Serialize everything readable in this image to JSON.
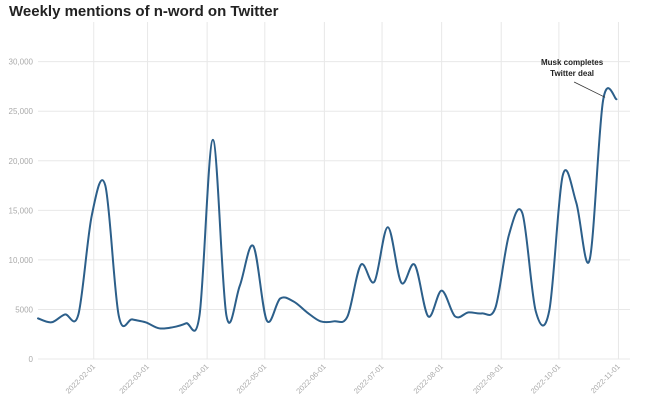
{
  "chart_data": {
    "type": "line",
    "title": "Weekly mentions of n-word on Twitter",
    "xlabel": "",
    "ylabel": "",
    "ylim": [
      0,
      34000
    ],
    "y_ticks": [
      0,
      5000,
      10000,
      15000,
      20000,
      25000,
      30000
    ],
    "y_tick_labels": [
      "0",
      "5000",
      "10,000",
      "15,000",
      "20,000",
      "25,000",
      "30,000"
    ],
    "x_ticks": [
      "2022-02-01",
      "2022-03-01",
      "2022-04-01",
      "2022-05-01",
      "2022-06-01",
      "2022-07-01",
      "2022-08-01",
      "2022-09-01",
      "2022-10-01",
      "2022-11-01"
    ],
    "xlim": [
      "2022-01-03",
      "2022-11-07"
    ],
    "grid": true,
    "series": [
      {
        "color": "#2c5f8a",
        "points": [
          [
            "2022-01-03",
            4100
          ],
          [
            "2022-01-10",
            3700
          ],
          [
            "2022-01-17",
            4500
          ],
          [
            "2022-01-24",
            4500
          ],
          [
            "2022-01-31",
            14500
          ],
          [
            "2022-02-07",
            17500
          ],
          [
            "2022-02-14",
            4400
          ],
          [
            "2022-02-21",
            4000
          ],
          [
            "2022-02-28",
            3700
          ],
          [
            "2022-03-07",
            3100
          ],
          [
            "2022-03-14",
            3200
          ],
          [
            "2022-03-21",
            3600
          ],
          [
            "2022-03-28",
            4400
          ],
          [
            "2022-04-04",
            22100
          ],
          [
            "2022-04-11",
            4400
          ],
          [
            "2022-04-18",
            7400
          ],
          [
            "2022-04-25",
            11400
          ],
          [
            "2022-05-02",
            3900
          ],
          [
            "2022-05-09",
            6100
          ],
          [
            "2022-05-16",
            5800
          ],
          [
            "2022-05-23",
            4700
          ],
          [
            "2022-05-30",
            3800
          ],
          [
            "2022-06-06",
            3800
          ],
          [
            "2022-06-13",
            4300
          ],
          [
            "2022-06-20",
            9500
          ],
          [
            "2022-06-27",
            7800
          ],
          [
            "2022-07-04",
            13300
          ],
          [
            "2022-07-11",
            7700
          ],
          [
            "2022-07-18",
            9500
          ],
          [
            "2022-07-25",
            4300
          ],
          [
            "2022-08-01",
            6900
          ],
          [
            "2022-08-08",
            4300
          ],
          [
            "2022-08-15",
            4700
          ],
          [
            "2022-08-22",
            4600
          ],
          [
            "2022-08-29",
            5200
          ],
          [
            "2022-09-05",
            12500
          ],
          [
            "2022-09-12",
            14700
          ],
          [
            "2022-09-19",
            4800
          ],
          [
            "2022-09-26",
            4900
          ],
          [
            "2022-10-03",
            18500
          ],
          [
            "2022-10-10",
            15800
          ],
          [
            "2022-10-17",
            10000
          ],
          [
            "2022-10-24",
            26100
          ],
          [
            "2022-10-31",
            26200
          ]
        ]
      }
    ],
    "annotations": [
      {
        "lines": [
          "Musk completes",
          "Twitter deal"
        ],
        "at": [
          "2022-10-24",
          26100
        ]
      }
    ]
  }
}
